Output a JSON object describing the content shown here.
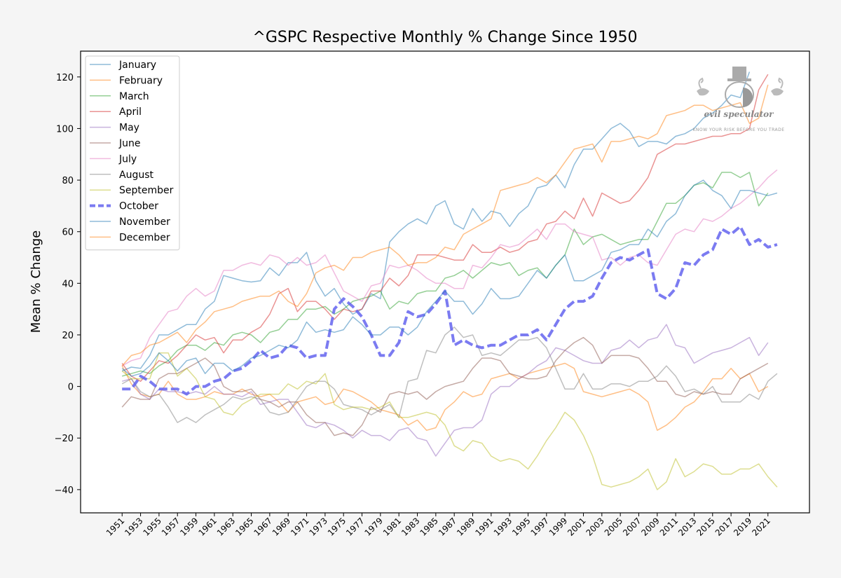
{
  "chart_data": {
    "type": "line",
    "title": "^GSPC Respective Monthly % Change Since 1950",
    "xlabel": "",
    "ylabel": "Mean % Change",
    "xlim": [
      1946.5,
      2025.5
    ],
    "ylim": [
      -49,
      130
    ],
    "yticks": [
      -40,
      -20,
      0,
      20,
      40,
      60,
      80,
      100,
      120
    ],
    "xticks": [
      1951,
      1953,
      1955,
      1957,
      1959,
      1961,
      1963,
      1965,
      1967,
      1969,
      1971,
      1973,
      1975,
      1977,
      1979,
      1981,
      1983,
      1985,
      1987,
      1989,
      1991,
      1993,
      1995,
      1997,
      1999,
      2001,
      2003,
      2005,
      2007,
      2009,
      2011,
      2013,
      2015,
      2017,
      2019,
      2021
    ],
    "grid": false,
    "legend_position": "upper left",
    "x_start": 1951,
    "series": [
      {
        "name": "January",
        "color": "#1f77b4",
        "dashed": false,
        "values": [
          6,
          7.5,
          7,
          12,
          20,
          20,
          22,
          24,
          24,
          30,
          33,
          43,
          42,
          41,
          40.5,
          41,
          46,
          43,
          48,
          48,
          52,
          41,
          35,
          38,
          32,
          28,
          30,
          36,
          34,
          56,
          60,
          63,
          65,
          63,
          70,
          72,
          63,
          61,
          69,
          64,
          68,
          67,
          62,
          67,
          70,
          77,
          78,
          82,
          77,
          86,
          92,
          92,
          96,
          100,
          102,
          99,
          93,
          95,
          95,
          94,
          97,
          98,
          100,
          104,
          106,
          109,
          113,
          112,
          122
        ]
      },
      {
        "name": "February",
        "color": "#ff7f0e",
        "dashed": false,
        "values": [
          8,
          1,
          -3,
          -4,
          -3,
          2,
          -3,
          -5,
          -5,
          -4,
          -2,
          -3,
          -3,
          -1,
          -3,
          -4,
          -3,
          -6,
          -10,
          -6,
          -5,
          -4,
          -7,
          -6,
          -1,
          -2,
          -4,
          -6,
          -9,
          -10,
          -11,
          -15,
          -13,
          -17,
          -16,
          -9,
          -6,
          -2,
          -4,
          -3,
          3,
          4,
          5,
          3,
          5,
          6,
          7,
          8,
          9,
          7,
          -2,
          -3,
          -4,
          -3,
          -2,
          -1,
          -3,
          -6,
          -17,
          -15,
          -12,
          -8,
          -6,
          -2,
          3,
          3,
          7,
          3,
          5,
          -2,
          0
        ]
      },
      {
        "name": "March",
        "color": "#2ca02c",
        "dashed": false,
        "values": [
          4,
          5,
          6,
          5,
          8,
          10,
          14,
          16,
          16,
          14,
          17,
          16,
          20,
          21,
          20,
          17,
          21,
          22,
          26,
          26,
          30,
          30,
          31,
          28,
          30,
          33,
          34,
          35,
          37,
          30,
          33,
          32,
          36,
          37,
          37,
          42,
          43,
          45,
          42,
          45,
          48,
          47,
          48,
          43,
          45,
          46,
          42,
          47,
          51,
          61,
          55,
          58,
          59,
          57,
          55,
          56,
          57,
          57,
          64,
          71,
          71,
          74,
          78,
          79,
          77,
          83,
          83,
          81,
          83,
          70,
          75
        ]
      },
      {
        "name": "April",
        "color": "#d62728",
        "dashed": false,
        "values": [
          9,
          4,
          2,
          6,
          10,
          9,
          12,
          16,
          20,
          18,
          19,
          13,
          18,
          18,
          21,
          23,
          28,
          36,
          38,
          29,
          33,
          33,
          30,
          26,
          30,
          29,
          30,
          37,
          37,
          42,
          39,
          43,
          51,
          51,
          51,
          50,
          49,
          49,
          55,
          52,
          52,
          54,
          52,
          53,
          56,
          57,
          63,
          64,
          68,
          65,
          73,
          66,
          75,
          73,
          71,
          72,
          76,
          81,
          90,
          92,
          94,
          94,
          95,
          96,
          97,
          97,
          98,
          98,
          100,
          115,
          121
        ]
      },
      {
        "name": "May",
        "color": "#9467bd",
        "dashed": false,
        "values": [
          2,
          3,
          -3,
          -5,
          -1,
          -2,
          -2,
          -3,
          -2,
          -3,
          0,
          -3,
          -3,
          -4,
          -2,
          -7,
          -6,
          -5,
          -5,
          -10,
          -15,
          -16,
          -14,
          -15,
          -17,
          -20,
          -17,
          -19,
          -19,
          -21,
          -17,
          -16,
          -20,
          -21,
          -27,
          -22,
          -17,
          -16,
          -16,
          -13,
          -3,
          0,
          0,
          3,
          5,
          8,
          10,
          15,
          14,
          12,
          10,
          9,
          9,
          14,
          15,
          18,
          15,
          18,
          19,
          24,
          16,
          15,
          9,
          11,
          13,
          14,
          15,
          17,
          19,
          12,
          17
        ]
      },
      {
        "name": "June",
        "color": "#8c564b",
        "dashed": false,
        "values": [
          -8,
          -4,
          -5,
          -5,
          3,
          5,
          5,
          7,
          9,
          11,
          8,
          0,
          -2,
          -2,
          -1,
          -5,
          -6,
          -8,
          -6,
          -6,
          -11,
          -14,
          -14,
          -19,
          -18,
          -19,
          -15,
          -8,
          -10,
          -3,
          -2,
          -3,
          -2,
          -5,
          -2,
          0,
          1,
          2,
          7,
          11,
          11,
          10,
          5,
          4,
          3,
          3,
          4,
          10,
          14,
          17,
          19,
          16,
          9,
          12,
          12,
          12,
          11,
          7,
          2,
          2,
          -3,
          -4,
          -2,
          -3,
          -2,
          -3,
          -3,
          3,
          5,
          7,
          9
        ]
      },
      {
        "name": "July",
        "color": "#e377c2",
        "dashed": false,
        "values": [
          8,
          10,
          11,
          19,
          24,
          29,
          30,
          35,
          38,
          35,
          37,
          45,
          45,
          47,
          48,
          47,
          51,
          50,
          47,
          50,
          47,
          48,
          51,
          44,
          37,
          35,
          33,
          39,
          40,
          47,
          46,
          47,
          45,
          42,
          40,
          40,
          38,
          38,
          47,
          46,
          50,
          55,
          54,
          55,
          58,
          61,
          57,
          63,
          63,
          60,
          59,
          58,
          49,
          50,
          47,
          50,
          51,
          48,
          47,
          53,
          59,
          61,
          60,
          65,
          64,
          66,
          69,
          71,
          74,
          77,
          81,
          84
        ]
      },
      {
        "name": "August",
        "color": "#7f7f7f",
        "dashed": false,
        "values": [
          1,
          3,
          -2,
          -4,
          -3,
          -8,
          -14,
          -12,
          -14,
          -11,
          -9,
          -7,
          -4,
          -5,
          -4,
          -5,
          -10,
          -11,
          -10,
          -5,
          0,
          2,
          2,
          -1,
          -7,
          -8,
          -9,
          -11,
          -9,
          -7,
          -12,
          2,
          3,
          14,
          13,
          20,
          23,
          19,
          20,
          12,
          13,
          12,
          15,
          18,
          18,
          19,
          15,
          7,
          -1,
          -1,
          5,
          -1,
          -1,
          1,
          1,
          0,
          2,
          2,
          4,
          8,
          4,
          -2,
          -1,
          -3,
          0,
          -6,
          -6,
          -6,
          -3,
          -5,
          2,
          5
        ]
      },
      {
        "name": "September",
        "color": "#bcbd22",
        "dashed": false,
        "values": [
          6,
          3,
          3,
          3,
          13,
          13,
          4,
          7,
          3,
          -4,
          -5,
          -10,
          -11,
          -7,
          -5,
          -3,
          -3,
          -3,
          1,
          -1,
          2,
          1,
          5,
          -7,
          -9,
          -8,
          -8,
          -9,
          -8,
          -6,
          -12,
          -12,
          -11,
          -10,
          -11,
          -15,
          -23,
          -25,
          -21,
          -22,
          -27,
          -29,
          -28,
          -29,
          -32,
          -27,
          -21,
          -16,
          -10,
          -13,
          -19,
          -27,
          -38,
          -39,
          -38,
          -37,
          -35,
          -32,
          -40,
          -37,
          -28,
          -35,
          -33,
          -30,
          -31,
          -34,
          -34,
          -32,
          -32,
          -30,
          -35,
          -39
        ]
      },
      {
        "name": "October",
        "color": "#6464ee",
        "dashed": true,
        "values": [
          -1,
          -1,
          4,
          2,
          -1,
          -1,
          -1,
          -3,
          0,
          0,
          2,
          3,
          6,
          7,
          10,
          14,
          11,
          12,
          16,
          15,
          11,
          12,
          12,
          30,
          34,
          31,
          27,
          20,
          12,
          12,
          17,
          29,
          27,
          28,
          32,
          37,
          16,
          18,
          16,
          15,
          16,
          16,
          18,
          20,
          20,
          22,
          18,
          24,
          30,
          33,
          33,
          35,
          42,
          48,
          50,
          49,
          51,
          53,
          36,
          34,
          38,
          48,
          47,
          51,
          53,
          61,
          59,
          62,
          55,
          57,
          54,
          55
        ]
      },
      {
        "name": "November",
        "color": "#1f77b4",
        "dashed": false,
        "values": [
          7,
          4,
          5,
          8,
          13,
          10,
          6,
          10,
          11,
          5,
          9,
          9,
          6,
          8,
          11,
          12,
          14,
          16,
          15,
          18,
          25,
          21,
          22,
          21,
          22,
          27,
          24,
          20,
          20,
          23,
          23,
          20,
          23,
          29,
          33,
          37,
          33,
          33,
          28,
          32,
          38,
          34,
          34,
          35,
          40,
          45,
          42,
          47,
          51,
          41,
          41,
          43,
          45,
          52,
          53,
          55,
          55,
          61,
          58,
          64,
          67,
          74,
          78,
          80,
          76,
          74,
          69,
          76,
          76,
          75,
          74,
          75
        ]
      },
      {
        "name": "December",
        "color": "#ff7f0e",
        "dashed": false,
        "values": [
          8,
          12,
          13,
          16,
          17,
          19,
          21,
          17,
          22,
          25,
          29,
          30,
          31,
          33,
          34,
          35,
          35,
          37,
          33,
          31,
          36,
          44,
          46,
          47,
          45,
          50,
          50,
          52,
          53,
          54,
          51,
          47,
          48,
          48,
          50,
          54,
          53,
          59,
          61,
          63,
          65,
          76,
          77,
          78,
          79,
          81,
          79,
          82,
          87,
          92,
          93,
          94,
          87,
          95,
          95,
          96,
          97,
          96,
          98,
          105,
          106,
          107,
          109,
          109,
          107,
          108,
          109,
          110,
          102,
          104,
          117
        ]
      }
    ]
  },
  "watermark": {
    "brand": "evil speculator",
    "tagline": "KNOW YOUR RISK BEFORE YOU TRADE"
  }
}
